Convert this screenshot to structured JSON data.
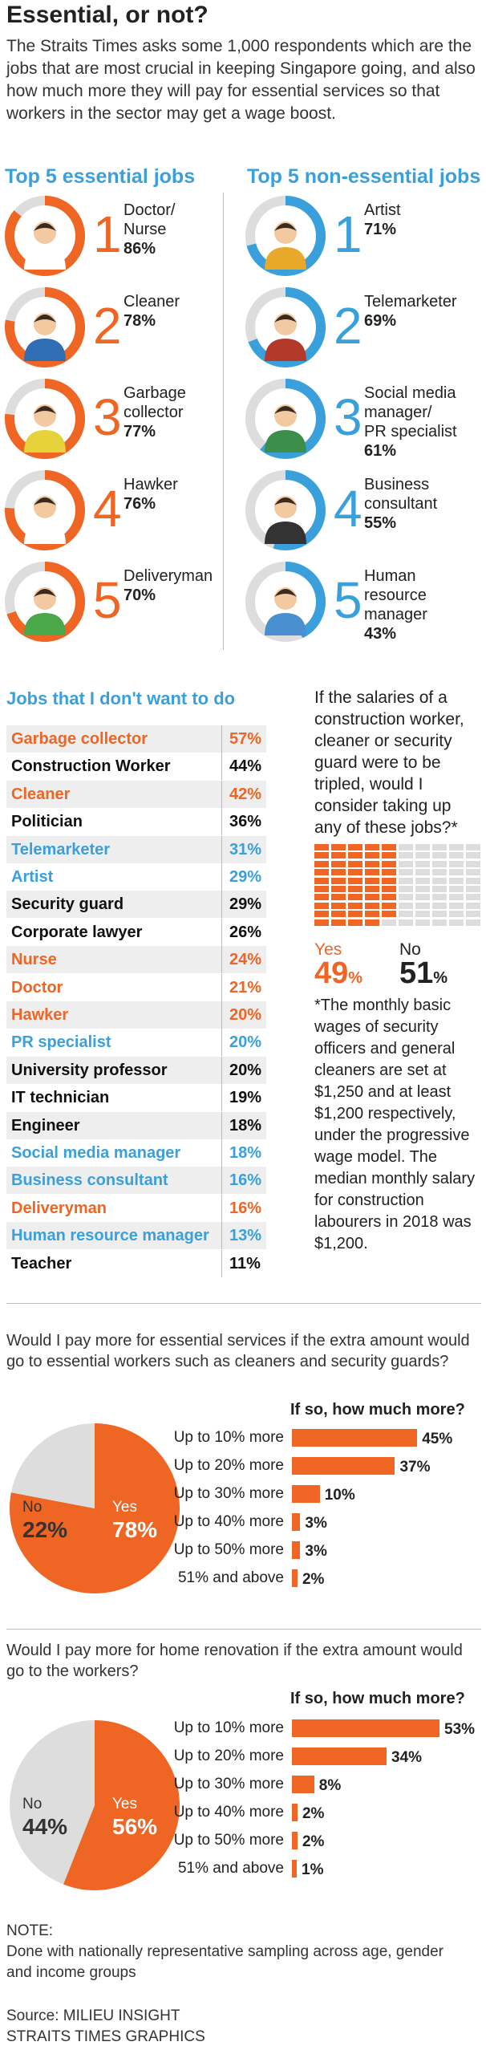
{
  "title": "Essential, or not?",
  "intro": "The Straits Times asks some 1,000 respondents which are the jobs that are most crucial in keeping Singapore going, and also how much more they will pay for essential services so that workers in the sector may get a wage boost.",
  "essential_heading": "Top 5 essential jobs",
  "nonessential_heading": "Top 5 non-essential jobs",
  "colors": {
    "orange": "#ef6524",
    "blue": "#3aa0dc",
    "grey": "#dddddd"
  },
  "essential_jobs": [
    {
      "rank": "1",
      "label_lines": [
        "Doctor/",
        "Nurse"
      ],
      "pct": "86%",
      "value": 86,
      "icon": "doctor-nurse-avatar"
    },
    {
      "rank": "2",
      "label_lines": [
        "Cleaner"
      ],
      "pct": "78%",
      "value": 78,
      "icon": "cleaner-avatar"
    },
    {
      "rank": "3",
      "label_lines": [
        "Garbage",
        "collector"
      ],
      "pct": "77%",
      "value": 77,
      "icon": "garbage-collector-avatar"
    },
    {
      "rank": "4",
      "label_lines": [
        "Hawker"
      ],
      "pct": "76%",
      "value": 76,
      "icon": "hawker-avatar"
    },
    {
      "rank": "5",
      "label_lines": [
        "Deliveryman"
      ],
      "pct": "70%",
      "value": 70,
      "icon": "deliveryman-avatar"
    }
  ],
  "nonessential_jobs": [
    {
      "rank": "1",
      "label_lines": [
        "Artist"
      ],
      "pct": "71%",
      "value": 71,
      "icon": "artist-avatar"
    },
    {
      "rank": "2",
      "label_lines": [
        "Telemarketer"
      ],
      "pct": "69%",
      "value": 69,
      "icon": "telemarketer-avatar"
    },
    {
      "rank": "3",
      "label_lines": [
        "Social media",
        "manager/",
        "PR specialist"
      ],
      "pct": "61%",
      "value": 61,
      "icon": "social-media-manager-avatar"
    },
    {
      "rank": "4",
      "label_lines": [
        "Business",
        "consultant"
      ],
      "pct": "55%",
      "value": 55,
      "icon": "business-consultant-avatar"
    },
    {
      "rank": "5",
      "label_lines": [
        "Human",
        "resource",
        "manager"
      ],
      "pct": "43%",
      "value": 43,
      "icon": "hr-manager-avatar"
    }
  ],
  "dont_want_heading": "Jobs that I don't want to do",
  "dont_want": [
    {
      "name": "Garbage collector",
      "pct": "57%",
      "group": "essential"
    },
    {
      "name": "Construction Worker",
      "pct": "44%",
      "group": "other"
    },
    {
      "name": "Cleaner",
      "pct": "42%",
      "group": "essential"
    },
    {
      "name": "Politician",
      "pct": "36%",
      "group": "other"
    },
    {
      "name": "Telemarketer",
      "pct": "31%",
      "group": "nonessential"
    },
    {
      "name": "Artist",
      "pct": "29%",
      "group": "nonessential"
    },
    {
      "name": "Security guard",
      "pct": "29%",
      "group": "other"
    },
    {
      "name": "Corporate lawyer",
      "pct": "26%",
      "group": "other"
    },
    {
      "name": "Nurse",
      "pct": "24%",
      "group": "essential"
    },
    {
      "name": "Doctor",
      "pct": "21%",
      "group": "essential"
    },
    {
      "name": "Hawker",
      "pct": "20%",
      "group": "essential"
    },
    {
      "name": "PR specialist",
      "pct": "20%",
      "group": "nonessential"
    },
    {
      "name": "University professor",
      "pct": "20%",
      "group": "other"
    },
    {
      "name": "IT technician",
      "pct": "19%",
      "group": "other"
    },
    {
      "name": "Engineer",
      "pct": "18%",
      "group": "other"
    },
    {
      "name": "Social media manager",
      "pct": "18%",
      "group": "nonessential"
    },
    {
      "name": "Business consultant",
      "pct": "16%",
      "group": "nonessential"
    },
    {
      "name": "Deliveryman",
      "pct": "16%",
      "group": "essential"
    },
    {
      "name": "Human resource manager",
      "pct": "13%",
      "group": "nonessential"
    },
    {
      "name": "Teacher",
      "pct": "11%",
      "group": "other"
    }
  ],
  "triple_question": "If the salaries of a construction worker, cleaner or security guard were to be tripled, would I consider taking up any of these jobs?*",
  "triple_answer": {
    "yes_label": "Yes",
    "yes_value": 49,
    "no_label": "No",
    "no_value": 51,
    "pct_sign": "%"
  },
  "footnote": "*The monthly basic wages of security officers and general cleaners are set at $1,250 and at least $1,200 respectively, under the progressive wage model. The median monthly salary for construction labourers in 2018 was $1,200.",
  "chart_data": [
    {
      "type": "pie",
      "title": "Would I pay more for essential services if the extra amount would go to essential workers such as cleaners and security guards?",
      "slices": [
        {
          "label": "Yes",
          "value": 78
        },
        {
          "label": "No",
          "value": 22
        }
      ]
    },
    {
      "type": "bar",
      "title": "If so, how much more?",
      "categories": [
        "Up to 10% more",
        "Up to 20% more",
        "Up to 30% more",
        "Up to 40% more",
        "Up to 50% more",
        "51% and above"
      ],
      "values": [
        45,
        37,
        10,
        3,
        3,
        2
      ],
      "value_labels": [
        "45%",
        "37%",
        "10%",
        "3%",
        "3%",
        "2%"
      ]
    },
    {
      "type": "pie",
      "title": "Would I pay more for home renovation if the extra amount would go to the workers?",
      "slices": [
        {
          "label": "Yes",
          "value": 56
        },
        {
          "label": "No",
          "value": 44
        }
      ]
    },
    {
      "type": "bar",
      "title": "If so, how much more?",
      "categories": [
        "Up to 10% more",
        "Up to 20% more",
        "Up to 30% more",
        "Up to 40% more",
        "Up to 50% more",
        "51% and above"
      ],
      "values": [
        53,
        34,
        8,
        2,
        2,
        1
      ],
      "value_labels": [
        "53%",
        "34%",
        "8%",
        "2%",
        "2%",
        "1%"
      ]
    }
  ],
  "note_title": "NOTE:",
  "note_text": "Done with nationally representative sampling across age, gender and income groups",
  "source_line1": "Source: MILIEU INSIGHT",
  "source_line2": "STRAITS TIMES GRAPHICS"
}
